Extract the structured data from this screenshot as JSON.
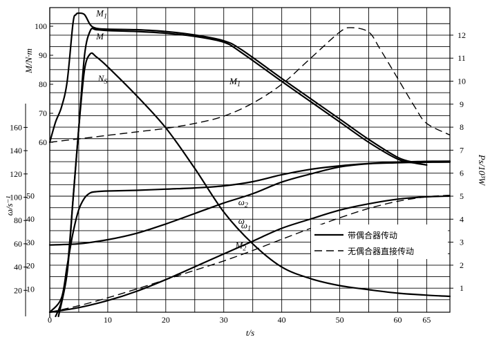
{
  "chart_data": {
    "type": "line",
    "xlabel": "t/s",
    "x_ticks": [
      0,
      10,
      20,
      30,
      40,
      50,
      60,
      65
    ],
    "xlim": [
      0,
      69
    ],
    "axes": {
      "M": {
        "label": "M/N·m",
        "ticks": [
          60,
          70,
          80,
          90,
          100
        ],
        "lim": [
          60,
          105
        ]
      },
      "omega": {
        "label": "ω/s⁻¹",
        "ticks": [
          20,
          40,
          60,
          80,
          100,
          120,
          140,
          160
        ],
        "lim": [
          0,
          165
        ]
      },
      "inner": {
        "ticks": [
          10,
          20,
          30,
          40,
          50
        ],
        "lim": [
          0,
          52
        ]
      },
      "Ps": {
        "label": "Ps/10³W",
        "ticks": [
          1,
          2,
          3,
          4,
          5,
          6,
          7,
          8,
          9,
          10,
          11,
          12
        ],
        "lim": [
          0,
          13
        ]
      }
    },
    "series": [
      {
        "name": "M1",
        "label": "M",
        "sub": "1",
        "axis": "M",
        "style": "solid",
        "label_at": [
          8,
          103.5
        ],
        "points": [
          [
            0,
            60
          ],
          [
            1,
            67
          ],
          [
            2,
            72
          ],
          [
            3,
            81
          ],
          [
            4,
            101
          ],
          [
            4.5,
            104
          ],
          [
            5,
            104.5
          ],
          [
            6,
            104
          ],
          [
            7,
            100.5
          ],
          [
            8,
            99.3
          ],
          [
            10,
            99
          ],
          [
            15,
            98.8
          ],
          [
            20,
            98.2
          ],
          [
            25,
            97
          ],
          [
            30,
            95
          ],
          [
            33,
            92
          ],
          [
            40,
            82
          ],
          [
            45,
            75
          ],
          [
            50,
            68
          ],
          [
            55,
            61
          ],
          [
            60,
            54.8
          ],
          [
            63,
            53
          ],
          [
            65,
            52.2
          ]
        ]
      },
      {
        "name": "M",
        "label": "M",
        "sub": "",
        "axis": "M",
        "style": "solid",
        "label_at": [
          8,
          95.5
        ],
        "points": [
          [
            1,
            0
          ],
          [
            2,
            5
          ],
          [
            3,
            16
          ],
          [
            4,
            40
          ],
          [
            5,
            65
          ],
          [
            6,
            90
          ],
          [
            7,
            98.5
          ],
          [
            8,
            98.8
          ],
          [
            10,
            98.5
          ],
          [
            15,
            98.2
          ],
          [
            20,
            97.6
          ],
          [
            25,
            96.5
          ],
          [
            30,
            94.5
          ],
          [
            33,
            91
          ],
          [
            40,
            81
          ],
          [
            45,
            74
          ],
          [
            50,
            67
          ],
          [
            55,
            60
          ],
          [
            60,
            54.2
          ],
          [
            63,
            52.8
          ],
          [
            65,
            52.2
          ]
        ]
      },
      {
        "name": "Ns",
        "label": "N",
        "sub": "S",
        "axis": "M",
        "style": "solid",
        "label_at": [
          8.3,
          81
        ],
        "points": [
          [
            1.5,
            0
          ],
          [
            3,
            15
          ],
          [
            4,
            40
          ],
          [
            5,
            65
          ],
          [
            6,
            85
          ],
          [
            7,
            90.5
          ],
          [
            8,
            89.5
          ],
          [
            10,
            86
          ],
          [
            15,
            76
          ],
          [
            20,
            65
          ],
          [
            25,
            51
          ],
          [
            30,
            36
          ],
          [
            35,
            25
          ],
          [
            40,
            17
          ],
          [
            45,
            13
          ],
          [
            50,
            10.6
          ],
          [
            55,
            9.2
          ],
          [
            60,
            8
          ],
          [
            65,
            7.3
          ],
          [
            69,
            6.9
          ]
        ]
      },
      {
        "name": "ω1",
        "label": "ω",
        "sub": "1",
        "axis": "inner",
        "style": "solid",
        "label_at": [
          33,
          36
        ],
        "points": [
          [
            0,
            0
          ],
          [
            2,
            6
          ],
          [
            3,
            20
          ],
          [
            4,
            34
          ],
          [
            5,
            44
          ],
          [
            6,
            49
          ],
          [
            7,
            51.2
          ],
          [
            8,
            51.7
          ],
          [
            10,
            52
          ],
          [
            15,
            52.3
          ],
          [
            20,
            52.8
          ],
          [
            25,
            53.3
          ],
          [
            30,
            54.2
          ],
          [
            35,
            56
          ],
          [
            40,
            59
          ],
          [
            45,
            61.3
          ],
          [
            50,
            62.8
          ],
          [
            55,
            63.8
          ],
          [
            60,
            64.4
          ],
          [
            65,
            64.7
          ],
          [
            69,
            64.8
          ]
        ]
      },
      {
        "name": "ω2",
        "label": "ω",
        "sub": "2",
        "axis": "inner",
        "style": "solid",
        "label_at": [
          32.5,
          46
        ],
        "points": [
          [
            0,
            0
          ],
          [
            5,
            2
          ],
          [
            10,
            5
          ],
          [
            15,
            9
          ],
          [
            20,
            14
          ],
          [
            25,
            19.5
          ],
          [
            30,
            25
          ],
          [
            35,
            30.5
          ],
          [
            40,
            36
          ],
          [
            45,
            40
          ],
          [
            50,
            43.8
          ],
          [
            55,
            46.5
          ],
          [
            60,
            48.5
          ],
          [
            65,
            49.5
          ],
          [
            69,
            49.8
          ]
        ]
      },
      {
        "name": "M2",
        "label": "M",
        "sub": "2",
        "axis": "omega",
        "style": "solid",
        "label_at": [
          32,
          56
        ],
        "points": [
          [
            0,
            59
          ],
          [
            5,
            60
          ],
          [
            10,
            63.5
          ],
          [
            15,
            69
          ],
          [
            20,
            77
          ],
          [
            25,
            86
          ],
          [
            30,
            95
          ],
          [
            35,
            103
          ],
          [
            40,
            113
          ],
          [
            45,
            120
          ],
          [
            50,
            126
          ],
          [
            55,
            128.8
          ],
          [
            60,
            129.6
          ],
          [
            65,
            130
          ],
          [
            69,
            130.2
          ]
        ]
      },
      {
        "name": "M1-direct",
        "label": "M",
        "sub": "1",
        "axis": "M",
        "style": "dashed",
        "label_at": [
          31,
          80
        ],
        "points": [
          [
            0,
            60
          ],
          [
            5,
            61.2
          ],
          [
            10,
            62.4
          ],
          [
            15,
            63.6
          ],
          [
            20,
            64.8
          ],
          [
            25,
            66.5
          ],
          [
            30,
            69
          ],
          [
            35,
            73.5
          ],
          [
            40,
            80
          ],
          [
            45,
            89
          ],
          [
            50,
            98
          ],
          [
            52,
            99.5
          ],
          [
            55,
            98
          ],
          [
            57,
            92
          ],
          [
            60,
            82
          ],
          [
            63,
            72
          ],
          [
            65,
            66.5
          ],
          [
            69,
            62.5
          ]
        ]
      },
      {
        "name": "ω-direct",
        "label": "ω",
        "sub": "",
        "axis": "inner",
        "style": "dashed",
        "label_at": [
          32.5,
          38
        ],
        "points": [
          [
            0,
            0
          ],
          [
            5,
            2.8
          ],
          [
            10,
            6.2
          ],
          [
            15,
            10
          ],
          [
            20,
            14
          ],
          [
            25,
            18
          ],
          [
            30,
            22
          ],
          [
            35,
            26.5
          ],
          [
            40,
            31.3
          ],
          [
            45,
            36
          ],
          [
            50,
            40.5
          ],
          [
            55,
            44.5
          ],
          [
            60,
            47.6
          ],
          [
            65,
            49.5
          ],
          [
            69,
            50.2
          ]
        ]
      }
    ],
    "legend": {
      "position": "right-middle",
      "items": [
        {
          "text": "带偶合器传动",
          "style": "solid"
        },
        {
          "text": "无偶合器直接传动",
          "style": "dashed"
        }
      ]
    },
    "grid": true
  }
}
